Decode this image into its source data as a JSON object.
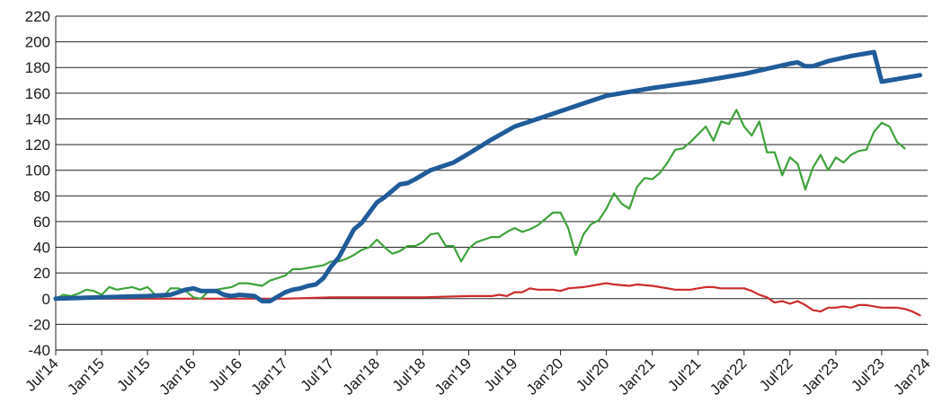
{
  "chart_data": {
    "type": "line",
    "title": "",
    "xlabel": "",
    "ylabel": "",
    "ylim": [
      -40,
      220
    ],
    "yticks": [
      -40,
      -20,
      0,
      20,
      40,
      60,
      80,
      100,
      120,
      140,
      160,
      180,
      200,
      220
    ],
    "xlim": [
      "2014-07",
      "2024-01"
    ],
    "xtick_labels": [
      "Jul'14",
      "Jan'15",
      "Jul'15",
      "Jan'16",
      "Jul'16",
      "Jan'17",
      "Jul'17",
      "Jan'18",
      "Jul'18",
      "Jan'19",
      "Jul'19",
      "Jan'20",
      "Jul'20",
      "Jan'21",
      "Jul'21",
      "Jan'22",
      "Jul'22",
      "Jan'23",
      "Jul'23",
      "Jan'24"
    ],
    "xtick_dates": [
      "2014-07",
      "2015-01",
      "2015-07",
      "2016-01",
      "2016-07",
      "2017-01",
      "2017-07",
      "2018-01",
      "2018-07",
      "2019-01",
      "2019-07",
      "2020-01",
      "2020-07",
      "2021-01",
      "2021-07",
      "2022-01",
      "2022-07",
      "2023-01",
      "2023-07",
      "2024-01"
    ],
    "grid": "horizontal",
    "legend": "none",
    "series": [
      {
        "color": "#1f5c99",
        "points": [
          [
            "2014-07",
            0
          ],
          [
            "2015-01",
            1
          ],
          [
            "2015-07",
            2
          ],
          [
            "2015-10",
            3
          ],
          [
            "2015-12",
            7
          ],
          [
            "2016-01",
            8
          ],
          [
            "2016-02",
            6
          ],
          [
            "2016-04",
            6
          ],
          [
            "2016-05",
            3
          ],
          [
            "2016-06",
            2
          ],
          [
            "2016-07",
            3
          ],
          [
            "2016-09",
            2
          ],
          [
            "2016-10",
            -2
          ],
          [
            "2016-11",
            -2
          ],
          [
            "2017-01",
            5
          ],
          [
            "2017-02",
            7
          ],
          [
            "2017-03",
            8
          ],
          [
            "2017-04",
            10
          ],
          [
            "2017-05",
            11
          ],
          [
            "2017-06",
            16
          ],
          [
            "2017-07",
            25
          ],
          [
            "2017-08",
            32
          ],
          [
            "2017-09",
            43
          ],
          [
            "2017-10",
            54
          ],
          [
            "2017-11",
            59
          ],
          [
            "2017-12",
            67
          ],
          [
            "2018-01",
            75
          ],
          [
            "2018-02",
            79
          ],
          [
            "2018-03",
            84
          ],
          [
            "2018-04",
            89
          ],
          [
            "2018-05",
            90
          ],
          [
            "2018-06",
            93
          ],
          [
            "2018-08",
            100
          ],
          [
            "2018-11",
            106
          ],
          [
            "2019-01",
            113
          ],
          [
            "2019-04",
            124
          ],
          [
            "2019-07",
            134
          ],
          [
            "2019-10",
            140
          ],
          [
            "2020-01",
            146
          ],
          [
            "2020-04",
            152
          ],
          [
            "2020-07",
            158
          ],
          [
            "2020-10",
            161
          ],
          [
            "2021-01",
            164
          ],
          [
            "2021-07",
            169
          ],
          [
            "2022-01",
            175
          ],
          [
            "2022-04",
            179
          ],
          [
            "2022-07",
            183
          ],
          [
            "2022-08",
            184
          ],
          [
            "2022-09",
            181
          ],
          [
            "2022-10",
            181
          ],
          [
            "2022-12",
            185
          ],
          [
            "2023-03",
            189
          ],
          [
            "2023-06",
            192
          ],
          [
            "2023-07",
            169
          ],
          [
            "2023-09",
            171
          ],
          [
            "2023-12",
            174
          ]
        ]
      },
      {
        "color": "#3ea33a",
        "points": [
          [
            "2014-07",
            0
          ],
          [
            "2014-08",
            3
          ],
          [
            "2014-09",
            2
          ],
          [
            "2014-10",
            4
          ],
          [
            "2014-11",
            7
          ],
          [
            "2014-12",
            6
          ],
          [
            "2015-01",
            3
          ],
          [
            "2015-02",
            9
          ],
          [
            "2015-03",
            7
          ],
          [
            "2015-04",
            8
          ],
          [
            "2015-05",
            9
          ],
          [
            "2015-06",
            7
          ],
          [
            "2015-07",
            9
          ],
          [
            "2015-08",
            3
          ],
          [
            "2015-09",
            1
          ],
          [
            "2015-10",
            8
          ],
          [
            "2015-11",
            8
          ],
          [
            "2015-12",
            6
          ],
          [
            "2016-01",
            1
          ],
          [
            "2016-02",
            0
          ],
          [
            "2016-03",
            6
          ],
          [
            "2016-04",
            7
          ],
          [
            "2016-05",
            8
          ],
          [
            "2016-06",
            9
          ],
          [
            "2016-07",
            12
          ],
          [
            "2016-08",
            12
          ],
          [
            "2016-09",
            11
          ],
          [
            "2016-10",
            10
          ],
          [
            "2016-11",
            14
          ],
          [
            "2016-12",
            16
          ],
          [
            "2017-01",
            18
          ],
          [
            "2017-02",
            23
          ],
          [
            "2017-03",
            23
          ],
          [
            "2017-04",
            24
          ],
          [
            "2017-05",
            25
          ],
          [
            "2017-06",
            26
          ],
          [
            "2017-07",
            29
          ],
          [
            "2017-08",
            29
          ],
          [
            "2017-09",
            31
          ],
          [
            "2017-10",
            34
          ],
          [
            "2017-11",
            38
          ],
          [
            "2017-12",
            40
          ],
          [
            "2018-01",
            46
          ],
          [
            "2018-02",
            40
          ],
          [
            "2018-03",
            35
          ],
          [
            "2018-04",
            37
          ],
          [
            "2018-05",
            41
          ],
          [
            "2018-06",
            41
          ],
          [
            "2018-07",
            44
          ],
          [
            "2018-08",
            50
          ],
          [
            "2018-09",
            51
          ],
          [
            "2018-10",
            41
          ],
          [
            "2018-11",
            41
          ],
          [
            "2018-12",
            29
          ],
          [
            "2019-01",
            39
          ],
          [
            "2019-02",
            44
          ],
          [
            "2019-03",
            46
          ],
          [
            "2019-04",
            48
          ],
          [
            "2019-05",
            48
          ],
          [
            "2019-06",
            52
          ],
          [
            "2019-07",
            55
          ],
          [
            "2019-08",
            52
          ],
          [
            "2019-09",
            54
          ],
          [
            "2019-10",
            57
          ],
          [
            "2019-11",
            62
          ],
          [
            "2019-12",
            67
          ],
          [
            "2020-01",
            67
          ],
          [
            "2020-02",
            55
          ],
          [
            "2020-03",
            34
          ],
          [
            "2020-04",
            50
          ],
          [
            "2020-05",
            58
          ],
          [
            "2020-06",
            61
          ],
          [
            "2020-07",
            70
          ],
          [
            "2020-08",
            82
          ],
          [
            "2020-09",
            74
          ],
          [
            "2020-10",
            70
          ],
          [
            "2020-11",
            87
          ],
          [
            "2020-12",
            94
          ],
          [
            "2021-01",
            93
          ],
          [
            "2021-02",
            98
          ],
          [
            "2021-03",
            106
          ],
          [
            "2021-04",
            116
          ],
          [
            "2021-05",
            117
          ],
          [
            "2021-06",
            122
          ],
          [
            "2021-07",
            128
          ],
          [
            "2021-08",
            134
          ],
          [
            "2021-09",
            123
          ],
          [
            "2021-10",
            138
          ],
          [
            "2021-11",
            136
          ],
          [
            "2021-12",
            147
          ],
          [
            "2022-01",
            134
          ],
          [
            "2022-02",
            127
          ],
          [
            "2022-03",
            138
          ],
          [
            "2022-04",
            114
          ],
          [
            "2022-05",
            114
          ],
          [
            "2022-06",
            96
          ],
          [
            "2022-07",
            110
          ],
          [
            "2022-08",
            105
          ],
          [
            "2022-09",
            85
          ],
          [
            "2022-10",
            102
          ],
          [
            "2022-11",
            112
          ],
          [
            "2022-12",
            100
          ],
          [
            "2023-01",
            110
          ],
          [
            "2023-02",
            106
          ],
          [
            "2023-03",
            112
          ],
          [
            "2023-04",
            115
          ],
          [
            "2023-05",
            116
          ],
          [
            "2023-06",
            130
          ],
          [
            "2023-07",
            137
          ],
          [
            "2023-08",
            134
          ],
          [
            "2023-09",
            122
          ],
          [
            "2023-10",
            117
          ]
        ]
      },
      {
        "color": "#cc2b2b",
        "points": [
          [
            "2014-07",
            0
          ],
          [
            "2015-01",
            0
          ],
          [
            "2015-07",
            0
          ],
          [
            "2016-01",
            0
          ],
          [
            "2016-07",
            0
          ],
          [
            "2017-01",
            0
          ],
          [
            "2017-07",
            1
          ],
          [
            "2018-01",
            1
          ],
          [
            "2018-07",
            1
          ],
          [
            "2019-01",
            2
          ],
          [
            "2019-04",
            2
          ],
          [
            "2019-05",
            3
          ],
          [
            "2019-06",
            2
          ],
          [
            "2019-07",
            5
          ],
          [
            "2019-08",
            5
          ],
          [
            "2019-09",
            8
          ],
          [
            "2019-10",
            7
          ],
          [
            "2019-12",
            7
          ],
          [
            "2020-01",
            6
          ],
          [
            "2020-02",
            8
          ],
          [
            "2020-04",
            9
          ],
          [
            "2020-06",
            11
          ],
          [
            "2020-07",
            12
          ],
          [
            "2020-08",
            11
          ],
          [
            "2020-10",
            10
          ],
          [
            "2020-11",
            11
          ],
          [
            "2021-01",
            10
          ],
          [
            "2021-03",
            8
          ],
          [
            "2021-04",
            7
          ],
          [
            "2021-06",
            7
          ],
          [
            "2021-07",
            8
          ],
          [
            "2021-08",
            9
          ],
          [
            "2021-09",
            9
          ],
          [
            "2021-10",
            8
          ],
          [
            "2021-12",
            8
          ],
          [
            "2022-01",
            8
          ],
          [
            "2022-02",
            6
          ],
          [
            "2022-03",
            3
          ],
          [
            "2022-04",
            1
          ],
          [
            "2022-05",
            -3
          ],
          [
            "2022-06",
            -2
          ],
          [
            "2022-07",
            -4
          ],
          [
            "2022-08",
            -2
          ],
          [
            "2022-09",
            -5
          ],
          [
            "2022-10",
            -9
          ],
          [
            "2022-11",
            -10
          ],
          [
            "2022-12",
            -7
          ],
          [
            "2023-01",
            -7
          ],
          [
            "2023-02",
            -6
          ],
          [
            "2023-03",
            -7
          ],
          [
            "2023-04",
            -5
          ],
          [
            "2023-05",
            -5
          ],
          [
            "2023-06",
            -6
          ],
          [
            "2023-07",
            -7
          ],
          [
            "2023-08",
            -7
          ],
          [
            "2023-09",
            -7
          ],
          [
            "2023-10",
            -8
          ],
          [
            "2023-11",
            -10
          ],
          [
            "2023-12",
            -13
          ]
        ]
      }
    ]
  }
}
